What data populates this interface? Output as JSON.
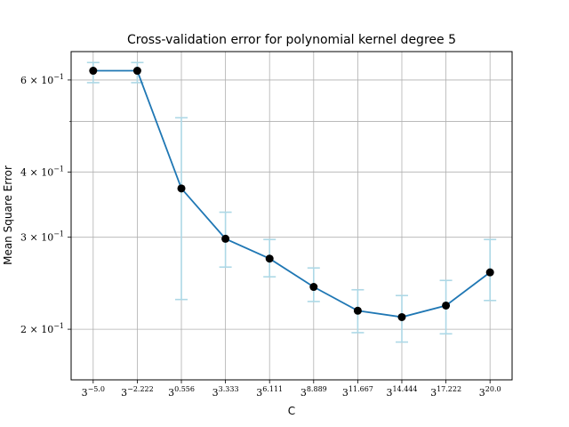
{
  "chart_data": {
    "type": "line",
    "title": "Cross-validation error for polynomial kernel degree 5",
    "xlabel": "C",
    "ylabel": "Mean Square Error",
    "y_scale": "log",
    "ylim": [
      0.16,
      0.68
    ],
    "grid": true,
    "x_ticks": [
      {
        "base": "3",
        "exp": "−5.0"
      },
      {
        "base": "3",
        "exp": "−2.222"
      },
      {
        "base": "3",
        "exp": "0.556"
      },
      {
        "base": "3",
        "exp": "3.333"
      },
      {
        "base": "3",
        "exp": "6.111"
      },
      {
        "base": "3",
        "exp": "8.889"
      },
      {
        "base": "3",
        "exp": "11.667"
      },
      {
        "base": "3",
        "exp": "14.444"
      },
      {
        "base": "3",
        "exp": "17.222"
      },
      {
        "base": "3",
        "exp": "20.0"
      }
    ],
    "y_ticks": [
      {
        "value": 0.2,
        "mant": "2",
        "times": "×",
        "base": "10",
        "exp": "−1"
      },
      {
        "value": 0.3,
        "mant": "3",
        "times": "×",
        "base": "10",
        "exp": "−1"
      },
      {
        "value": 0.4,
        "mant": "4",
        "times": "×",
        "base": "10",
        "exp": "−1"
      },
      {
        "value": 0.6,
        "mant": "6",
        "times": "×",
        "base": "10",
        "exp": "−1"
      }
    ],
    "y_minor_ticks": [
      0.5
    ],
    "series": [
      {
        "x": [
          -5.0,
          -2.222,
          0.556,
          3.333,
          6.111,
          8.889,
          11.667,
          14.444,
          17.222,
          20.0
        ],
        "values": [
          0.625,
          0.625,
          0.372,
          0.298,
          0.273,
          0.241,
          0.217,
          0.211,
          0.222,
          0.257
        ],
        "err_low": [
          0.593,
          0.593,
          0.228,
          0.263,
          0.252,
          0.226,
          0.197,
          0.189,
          0.196,
          0.227
        ],
        "err_high": [
          0.648,
          0.648,
          0.508,
          0.335,
          0.297,
          0.262,
          0.238,
          0.232,
          0.248,
          0.297
        ]
      }
    ],
    "colors": {
      "line": "#1f77b4",
      "marker": "#000000",
      "errorbar": "#add8e6",
      "grid": "#b0b0b0",
      "axes": "#000000"
    }
  }
}
